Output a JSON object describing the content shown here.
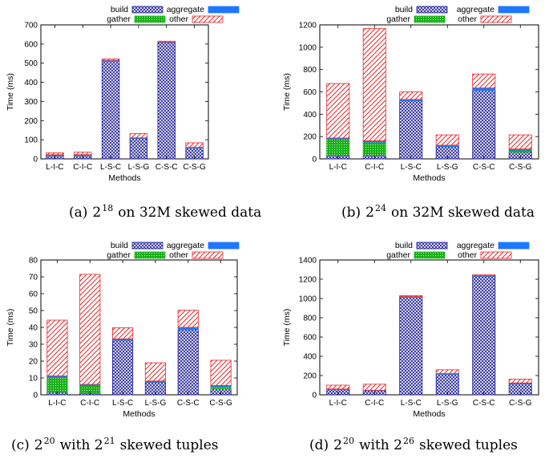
{
  "figure": {
    "legend_labels": {
      "build": "build",
      "gather": "gather",
      "aggregate": "aggregate",
      "other": "other"
    },
    "colors": {
      "build": "#1f1f9a",
      "gather": "#19b019",
      "aggregate": "#1e78ff",
      "other": "#e8282a"
    }
  },
  "chart_data": [
    {
      "type": "bar",
      "stacked": true,
      "title": "",
      "xlabel": "Methods",
      "ylabel": "Time (ms)",
      "ylim": [
        0,
        700
      ],
      "yticks": [
        0,
        100,
        200,
        300,
        400,
        500,
        600,
        700
      ],
      "categories": [
        "L-I-C",
        "C-I-C",
        "L-S-C",
        "L-S-G",
        "C-S-C",
        "C-S-G"
      ],
      "series": [
        {
          "name": "build",
          "values": [
            18,
            18,
            512,
            108,
            607,
            58
          ]
        },
        {
          "name": "gather",
          "values": [
            2,
            2,
            0,
            0,
            0,
            0
          ]
        },
        {
          "name": "aggregate",
          "values": [
            2,
            2,
            3,
            2,
            3,
            2
          ]
        },
        {
          "name": "other",
          "values": [
            10,
            13,
            7,
            22,
            5,
            24
          ]
        }
      ],
      "caption": {
        "label": "(a)",
        "base": "2",
        "exp": "18",
        "rest": "on 32M skewed data"
      }
    },
    {
      "type": "bar",
      "stacked": true,
      "title": "",
      "xlabel": "Methods",
      "ylabel": "Time (ms)",
      "ylim": [
        0,
        1200
      ],
      "yticks": [
        0,
        200,
        400,
        600,
        800,
        1000,
        1200
      ],
      "categories": [
        "L-I-C",
        "C-I-C",
        "L-S-C",
        "L-S-G",
        "C-S-C",
        "C-S-G"
      ],
      "series": [
        {
          "name": "build",
          "values": [
            30,
            30,
            520,
            110,
            610,
            60
          ]
        },
        {
          "name": "gather",
          "values": [
            145,
            120,
            0,
            0,
            0,
            18
          ]
        },
        {
          "name": "aggregate",
          "values": [
            12,
            12,
            12,
            12,
            25,
            10
          ]
        },
        {
          "name": "other",
          "values": [
            488,
            1005,
            68,
            93,
            125,
            127
          ]
        }
      ],
      "caption": {
        "label": "(b)",
        "base": "2",
        "exp": "24",
        "rest": "on 32M skewed data"
      }
    },
    {
      "type": "bar",
      "stacked": true,
      "title": "",
      "xlabel": "Methods",
      "ylabel": "Time (ms)",
      "ylim": [
        0,
        80
      ],
      "yticks": [
        0,
        10,
        20,
        30,
        40,
        50,
        60,
        70,
        80
      ],
      "categories": [
        "L-I-C",
        "C-I-C",
        "L-S-C",
        "L-S-G",
        "C-S-C",
        "C-S-G"
      ],
      "series": [
        {
          "name": "build",
          "values": [
            1.5,
            1,
            32.5,
            7.5,
            38.5,
            3.5
          ]
        },
        {
          "name": "gather",
          "values": [
            9,
            4.5,
            0,
            0,
            0,
            1.5
          ]
        },
        {
          "name": "aggregate",
          "values": [
            0.7,
            0.7,
            0.7,
            0.7,
            1.5,
            0.5
          ]
        },
        {
          "name": "other",
          "values": [
            33.1,
            65.3,
            6.6,
            10.8,
            10.2,
            15
          ]
        }
      ],
      "caption": {
        "label": "(c)",
        "base": "2",
        "exp": "20",
        "rest": "with 2",
        "exp2": "21",
        "rest2": "skewed tuples"
      }
    },
    {
      "type": "bar",
      "stacked": true,
      "title": "",
      "xlabel": "Methods",
      "ylabel": "Time (ms)",
      "ylim": [
        0,
        1400
      ],
      "yticks": [
        0,
        200,
        400,
        600,
        800,
        1000,
        1200,
        1400
      ],
      "categories": [
        "L-I-C",
        "C-I-C",
        "L-S-C",
        "L-S-G",
        "C-S-C",
        "C-S-G"
      ],
      "series": [
        {
          "name": "build",
          "values": [
            55,
            42,
            1015,
            215,
            1232,
            118
          ]
        },
        {
          "name": "gather",
          "values": [
            0,
            0,
            0,
            0,
            0,
            0
          ]
        },
        {
          "name": "aggregate",
          "values": [
            5,
            5,
            5,
            5,
            5,
            5
          ]
        },
        {
          "name": "other",
          "values": [
            40,
            63,
            10,
            40,
            10,
            40
          ]
        }
      ],
      "caption": {
        "label": "(d)",
        "base": "2",
        "exp": "20",
        "rest": "with 2",
        "exp2": "26",
        "rest2": "skewed tuples"
      }
    }
  ]
}
